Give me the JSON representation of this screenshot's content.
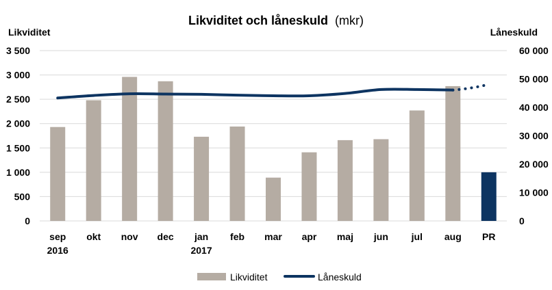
{
  "chart_data": {
    "type": "bar",
    "title": "Likviditet och låneskuld",
    "title_unit": "(mkr)",
    "categories": [
      "sep",
      "okt",
      "nov",
      "dec",
      "jan",
      "feb",
      "mar",
      "apr",
      "maj",
      "jun",
      "jul",
      "aug",
      "PR"
    ],
    "category_sublabels": [
      "2016",
      "",
      "",
      "",
      "2017",
      "",
      "",
      "",
      "",
      "",
      "",
      "",
      ""
    ],
    "y_left": {
      "label": "Likviditet",
      "lim": [
        0,
        3500
      ],
      "ticks": [
        "0",
        "500",
        "1 000",
        "1 500",
        "2 000",
        "2 500",
        "3 000",
        "3 500"
      ]
    },
    "y_right": {
      "label": "Låneskuld",
      "lim": [
        0,
        60000
      ],
      "ticks": [
        "0",
        "10 000",
        "20 000",
        "30 000",
        "40 000",
        "50 000",
        "60 000"
      ]
    },
    "grid": true,
    "legend_position": "bottom",
    "series": [
      {
        "name": "Likviditet",
        "kind": "bar",
        "axis": "left",
        "color": "#b5aca3",
        "highlight_color": "#0d3461",
        "values": [
          1930,
          2480,
          2960,
          2870,
          1730,
          1940,
          890,
          1410,
          1660,
          1680,
          2270,
          2770,
          1000
        ],
        "highlight_index": 12
      },
      {
        "name": "Låneskuld",
        "kind": "line",
        "axis": "right",
        "color": "#0d3461",
        "values": [
          43300,
          44200,
          44800,
          44700,
          44600,
          44300,
          44100,
          44100,
          44900,
          46300,
          46300,
          46100,
          null
        ],
        "projection": [
          46100,
          48100
        ]
      }
    ]
  }
}
